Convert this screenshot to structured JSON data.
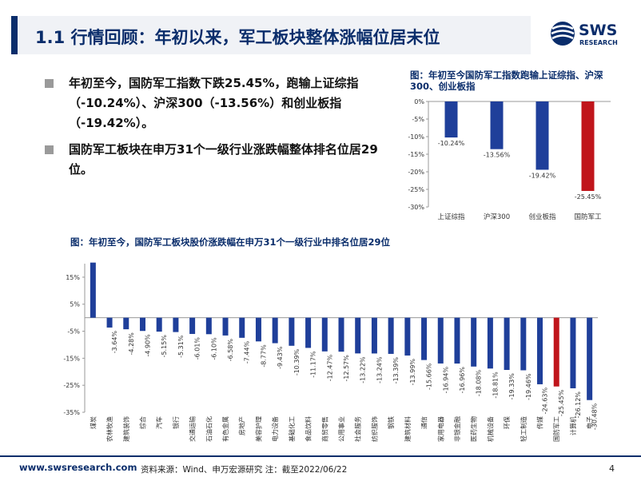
{
  "slide": {
    "title": "1.1 行情回顾：年初以来，军工板块整体涨幅位居末位",
    "logo": {
      "brand": "SWS",
      "sub": "RESEARCH",
      "icon": "sws-globe-logo"
    },
    "bullets": [
      "年初至今，国防军工指数下跌25.45%，跑输上证综指（-10.24%）、沪深300（-13.56%）和创业板指（-19.42%）。",
      "国防军工板块在申万31个一级行业涨跌幅整体排名位居29位。"
    ],
    "footer": {
      "url": "www.swsresearch.com",
      "source": "资料来源：Wind、申万宏源研究  注：截至2022/06/22",
      "page": "4"
    },
    "colors": {
      "primary": "#0a2d6b",
      "bar": "#1f3f9a",
      "highlight": "#c0151b"
    }
  },
  "chart_data": [
    {
      "type": "bar",
      "title": "图：年初至今国防军工指数跑输上证综指、沪深300、创业板指",
      "categories": [
        "上证综指",
        "沪深300",
        "创业板指",
        "国防军工"
      ],
      "values": [
        -10.24,
        -13.56,
        -19.42,
        -25.45
      ],
      "data_labels": [
        "-10.24%",
        "-13.56%",
        "-19.42%",
        "-25.45%"
      ],
      "highlight_index": 3,
      "ylim": [
        -30,
        0
      ],
      "yticks": [
        0,
        -5,
        -10,
        -15,
        -20,
        -25,
        -30
      ],
      "ytick_labels": [
        "0%",
        "-5%",
        "-10%",
        "-15%",
        "-20%",
        "-25%",
        "-30%"
      ],
      "xlabel": "",
      "ylabel": ""
    },
    {
      "type": "bar",
      "title": "图：年初至今，国防军工板块股价涨跌幅在申万31个一级行业中排名位居29位",
      "categories": [
        "煤炭",
        "农林牧渔",
        "建筑装饰",
        "综合",
        "汽车",
        "银行",
        "交通运输",
        "石油石化",
        "有色金属",
        "房地产",
        "美容护理",
        "电力设备",
        "基础化工",
        "食品饮料",
        "商贸零售",
        "公用事业",
        "社会服务",
        "纺织服饰",
        "钢铁",
        "建筑材料",
        "通信",
        "家用电器",
        "非银金融",
        "医药生物",
        "机械设备",
        "环保",
        "轻工制造",
        "传媒",
        "国防军工",
        "计算机",
        "电子"
      ],
      "values": [
        20.4,
        -3.64,
        -4.28,
        -4.9,
        -5.15,
        -5.31,
        -6.01,
        -6.1,
        -6.58,
        -7.44,
        -8.77,
        -9.43,
        -10.39,
        -11.17,
        -12.47,
        -12.57,
        -13.22,
        -13.24,
        -13.39,
        -13.99,
        -15.66,
        -16.94,
        -16.96,
        -18.08,
        -18.81,
        -19.33,
        -19.46,
        -24.63,
        -25.45,
        -26.12,
        -30.48
      ],
      "data_labels": [
        "",
        "-3.64%",
        "-4.28%",
        "-4.90%",
        "-5.15%",
        "-5.31%",
        "-6.01%",
        "-6.10%",
        "-6.58%",
        "-7.44%",
        "-8.77%",
        "-9.43%",
        "-10.39%",
        "-11.17%",
        "-12.47%",
        "-12.57%",
        "-13.22%",
        "-13.24%",
        "-13.39%",
        "-13.99%",
        "-15.66%",
        "-16.94%",
        "-16.96%",
        "-18.08%",
        "-18.81%",
        "-19.33%",
        "-19.46%",
        "-24.63%",
        "-25.45%",
        "-26.12%",
        "-30.48%"
      ],
      "highlight_index": 28,
      "ylim": [
        -35,
        20
      ],
      "yticks": [
        15,
        5,
        -5,
        -15,
        -25,
        -35
      ],
      "ytick_labels": [
        "15%",
        "5%",
        "-5%",
        "-15%",
        "-25%",
        "-35%"
      ],
      "xlabel": "",
      "ylabel": ""
    }
  ]
}
